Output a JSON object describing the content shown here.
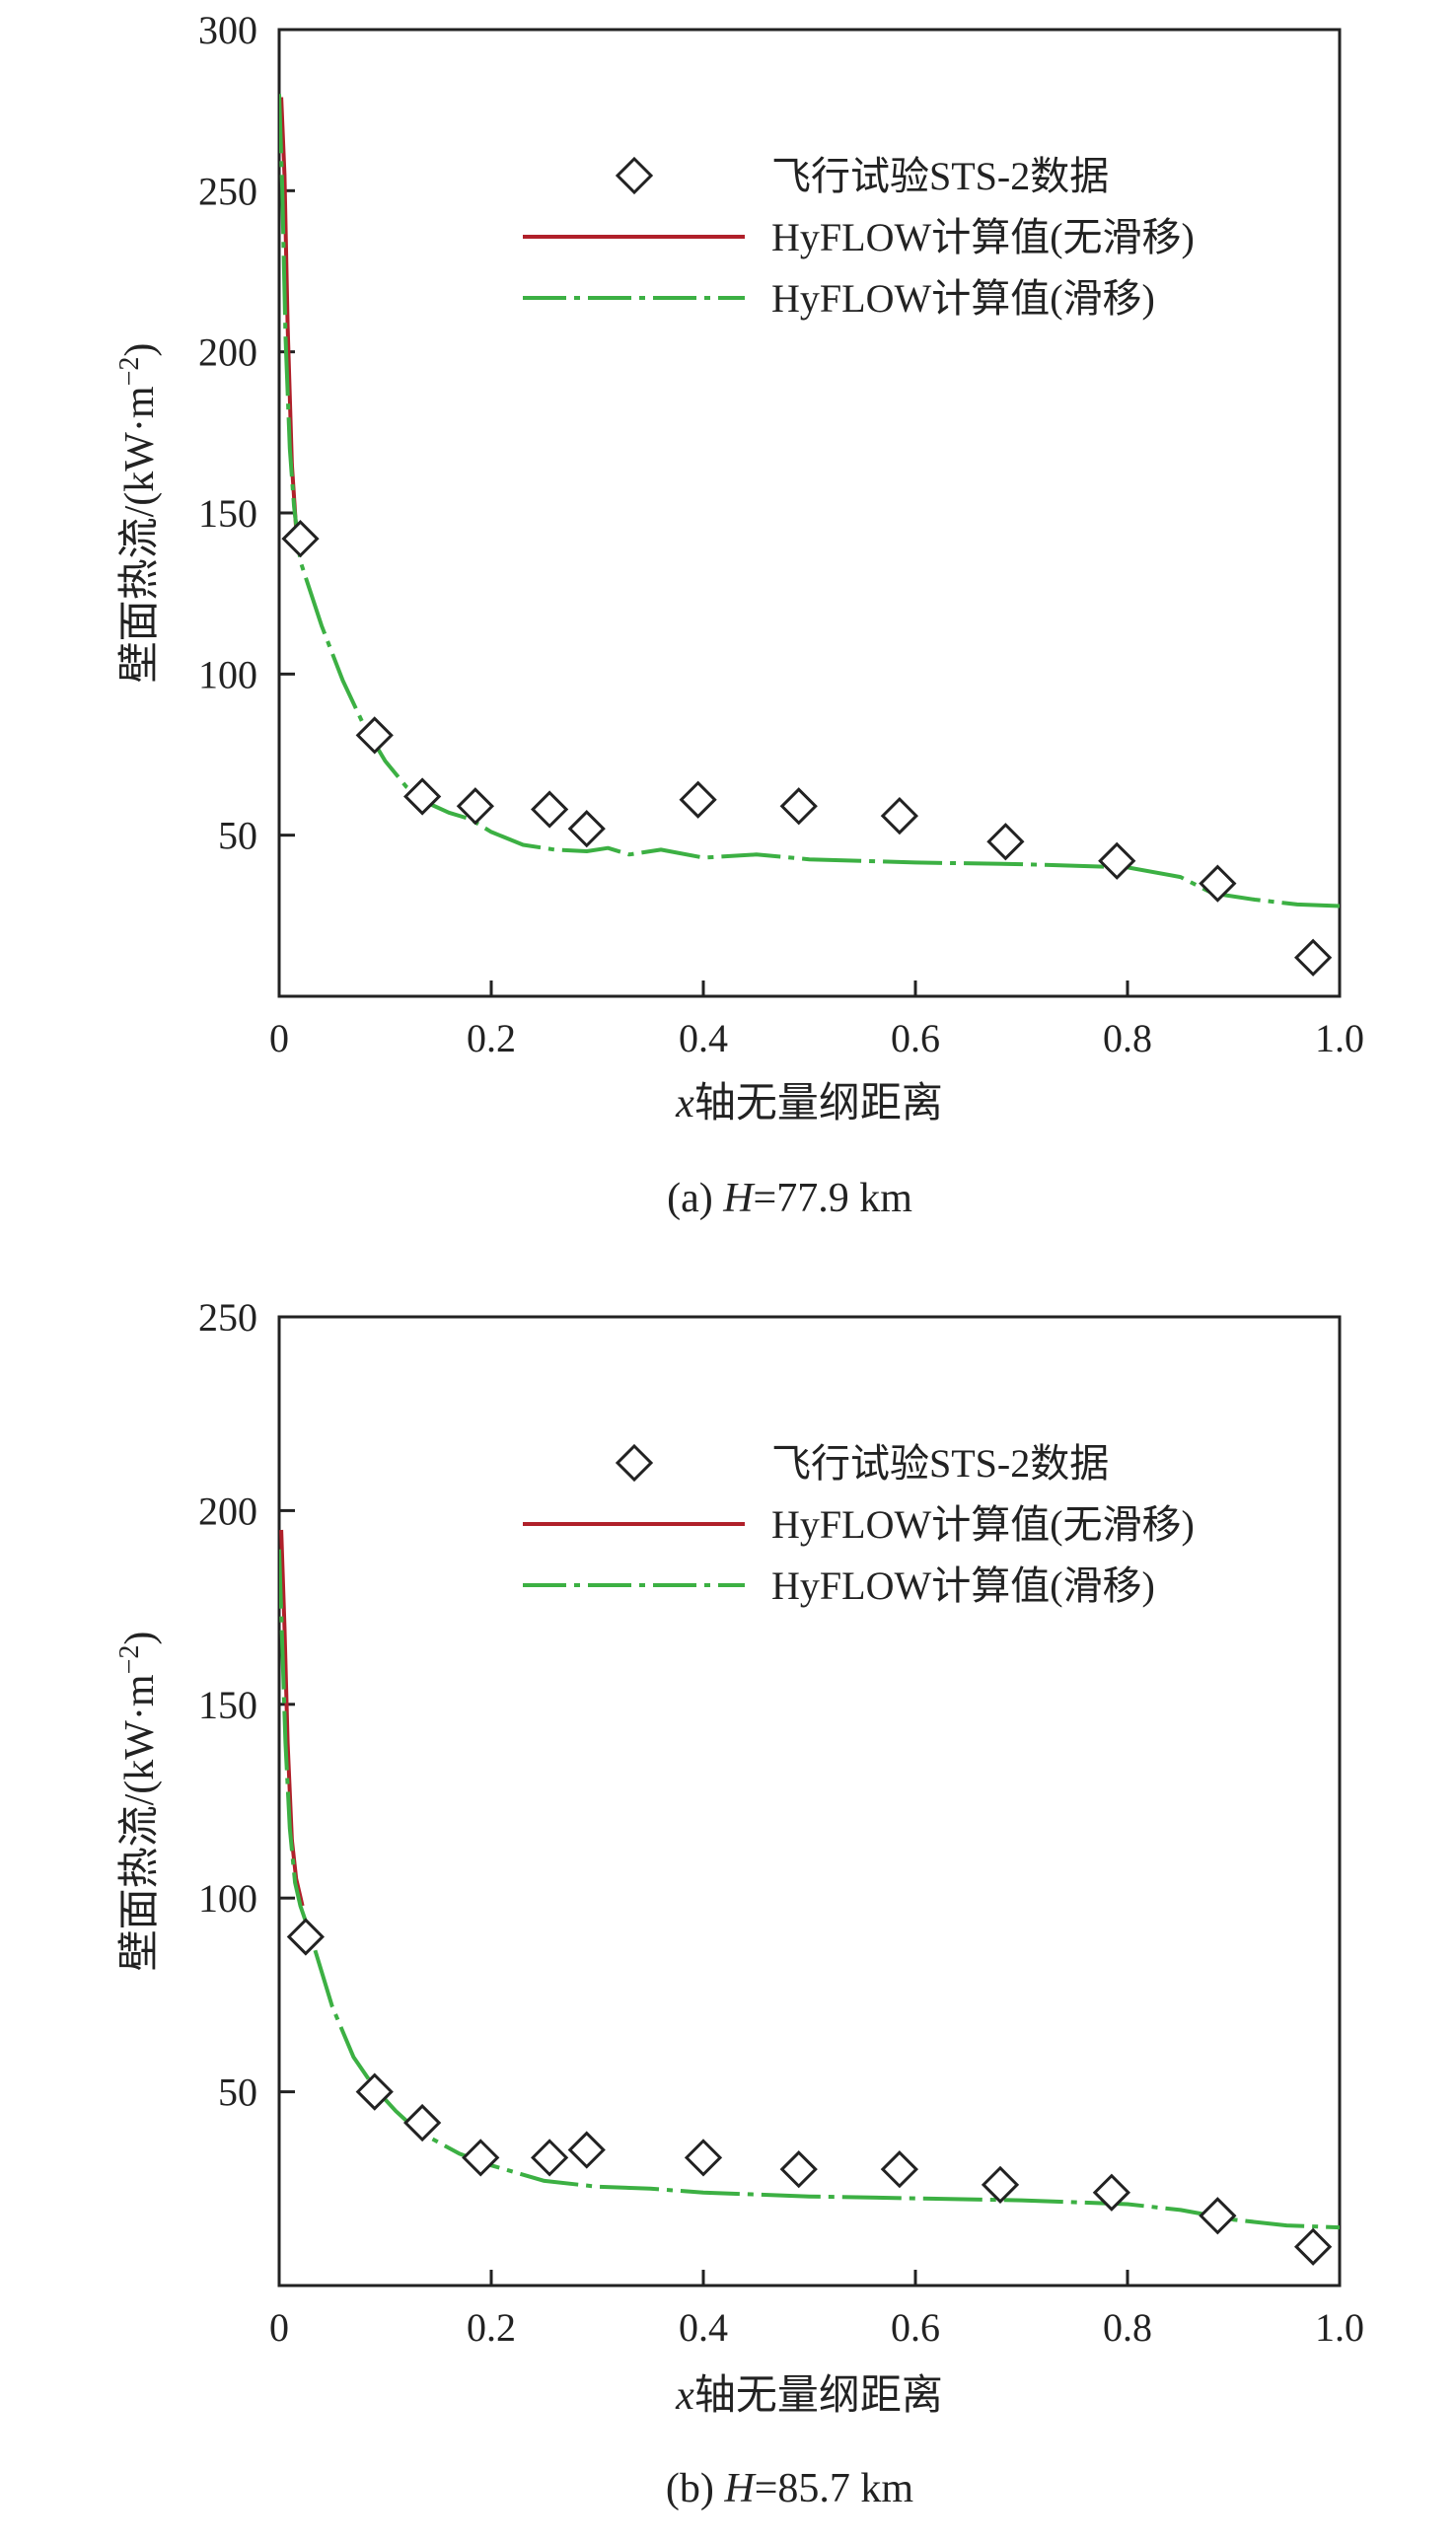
{
  "chart_data": [
    {
      "type": "line",
      "caption": "(a) H=77.9 km",
      "caption_parts": {
        "prefix": "(a) ",
        "var": "H",
        "rest": "=77.9 km"
      },
      "xlabel": "x轴无量纲距离",
      "xlabel_parts": {
        "var": "x",
        "rest": "轴无量纲距离"
      },
      "ylabel": "壁面热流/(kW·m⁻²)",
      "ylabel_parts": {
        "main": "壁面热流/(kW·m",
        "sup": "−2",
        "close": ")"
      },
      "xlim": [
        0,
        1.0
      ],
      "ylim": [
        0,
        300
      ],
      "x_ticks": [
        0,
        0.2,
        0.4,
        0.6,
        0.8,
        1.0
      ],
      "x_tick_labels": [
        "0",
        "0.2",
        "0.4",
        "0.6",
        "0.8",
        "1.0"
      ],
      "y_ticks": [
        50,
        100,
        150,
        200,
        250,
        300
      ],
      "y_tick_labels": [
        "50",
        "100",
        "150",
        "200",
        "250",
        "300"
      ],
      "legend": {
        "placement": "top-right",
        "entries": [
          "飞行试验STS-2数据",
          "HyFLOW计算值(无滑移)",
          "HyFLOW计算值(滑移)"
        ]
      },
      "colors": {
        "no_slip": "#b0202a",
        "slip": "#3cb043",
        "marker": "#222222"
      },
      "series": [
        {
          "name": "飞行试验STS-2数据",
          "kind": "scatter",
          "marker": "diamond",
          "x": [
            0.02,
            0.09,
            0.135,
            0.185,
            0.255,
            0.29,
            0.395,
            0.49,
            0.585,
            0.685,
            0.79,
            0.885,
            0.975
          ],
          "y": [
            142,
            81,
            62,
            59,
            58,
            52,
            61,
            59,
            56,
            48,
            42,
            35,
            12
          ]
        },
        {
          "name": "HyFLOW计算值(无滑移)",
          "kind": "line",
          "style": "solid",
          "x": [
            0.002,
            0.005,
            0.008,
            0.012,
            0.016,
            0.02
          ],
          "y": [
            279,
            255,
            208,
            165,
            145,
            140
          ]
        },
        {
          "name": "HyFLOW计算值(滑移)",
          "kind": "line",
          "style": "dash-dot",
          "x": [
            0.0,
            0.003,
            0.006,
            0.01,
            0.014,
            0.02,
            0.03,
            0.04,
            0.06,
            0.08,
            0.1,
            0.12,
            0.14,
            0.16,
            0.18,
            0.2,
            0.23,
            0.26,
            0.29,
            0.31,
            0.33,
            0.36,
            0.4,
            0.45,
            0.5,
            0.6,
            0.7,
            0.8,
            0.85,
            0.88,
            0.92,
            0.96,
            1.0
          ],
          "y": [
            280,
            250,
            205,
            170,
            152,
            135,
            125,
            115,
            98,
            84,
            73,
            65,
            60,
            57,
            55,
            51,
            47,
            45.5,
            45,
            46,
            44,
            45.5,
            43,
            44,
            42.5,
            41.5,
            41,
            40,
            37,
            32,
            30,
            28.5,
            28
          ]
        }
      ]
    },
    {
      "type": "line",
      "caption": "(b) H=85.7 km",
      "caption_parts": {
        "prefix": "(b) ",
        "var": "H",
        "rest": "=85.7 km"
      },
      "xlabel": "x轴无量纲距离",
      "xlabel_parts": {
        "var": "x",
        "rest": "轴无量纲距离"
      },
      "ylabel": "壁面热流/(kW·m⁻²)",
      "ylabel_parts": {
        "main": "壁面热流/(kW·m",
        "sup": "−2",
        "close": ")"
      },
      "xlim": [
        0,
        1.0
      ],
      "ylim": [
        0,
        250
      ],
      "x_ticks": [
        0,
        0.2,
        0.4,
        0.6,
        0.8,
        1.0
      ],
      "x_tick_labels": [
        "0",
        "0.2",
        "0.4",
        "0.6",
        "0.8",
        "1.0"
      ],
      "y_ticks": [
        50,
        100,
        150,
        200,
        250
      ],
      "y_tick_labels": [
        "50",
        "100",
        "150",
        "200",
        "250"
      ],
      "legend": {
        "placement": "top-right",
        "entries": [
          "飞行试验STS-2数据",
          "HyFLOW计算值(无滑移)",
          "HyFLOW计算值(滑移)"
        ]
      },
      "colors": {
        "no_slip": "#b0202a",
        "slip": "#3cb043",
        "marker": "#222222"
      },
      "series": [
        {
          "name": "飞行试验STS-2数据",
          "kind": "scatter",
          "marker": "diamond",
          "x": [
            0.025,
            0.09,
            0.135,
            0.19,
            0.255,
            0.29,
            0.4,
            0.49,
            0.585,
            0.68,
            0.785,
            0.885,
            0.975
          ],
          "y": [
            90,
            50,
            42,
            33,
            33,
            35,
            33,
            30,
            30,
            26,
            24,
            18,
            10
          ]
        },
        {
          "name": "HyFLOW计算值(无滑移)",
          "kind": "line",
          "style": "solid",
          "x": [
            0.002,
            0.005,
            0.008,
            0.012,
            0.016,
            0.022
          ],
          "y": [
            195,
            170,
            140,
            115,
            105,
            98
          ]
        },
        {
          "name": "HyFLOW计算值(滑移)",
          "kind": "line",
          "style": "dash-dot",
          "x": [
            0.0,
            0.003,
            0.006,
            0.01,
            0.015,
            0.02,
            0.03,
            0.05,
            0.07,
            0.09,
            0.11,
            0.13,
            0.15,
            0.17,
            0.2,
            0.25,
            0.3,
            0.35,
            0.4,
            0.5,
            0.6,
            0.7,
            0.8,
            0.85,
            0.9,
            0.95,
            1.0
          ],
          "y": [
            190,
            165,
            140,
            118,
            104,
            98,
            90,
            72,
            59,
            51,
            45,
            40,
            37,
            34,
            31,
            27,
            25.5,
            25,
            24,
            23,
            22.5,
            22,
            21,
            19.5,
            17,
            15.5,
            15
          ]
        }
      ]
    }
  ]
}
